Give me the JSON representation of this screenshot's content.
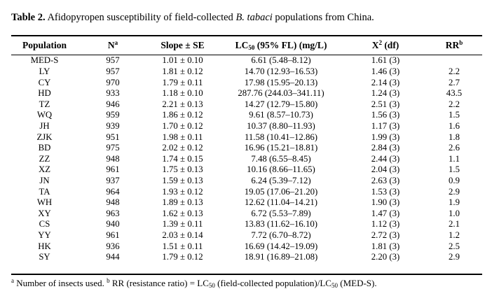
{
  "caption": {
    "label": "Table 2.",
    "text_before": " Afidopyropen susceptibility of field-collected ",
    "species": "B. tabaci",
    "text_after": " populations from China."
  },
  "headers": {
    "population": "Population",
    "n": "N",
    "n_sup": "a",
    "slope": "Slope ± SE",
    "lc_pre": "LC",
    "lc_sub": "50",
    "lc_post": " (95% FL) (mg/L)",
    "chi_pre": "X",
    "chi_sup": "2",
    "chi_post": " (df)",
    "rr": "RR",
    "rr_sup": "b"
  },
  "rows": [
    {
      "pop": "MED-S",
      "n": "957",
      "slope": "1.01 ± 0.10",
      "lc50": "6.61 (5.48–8.12)",
      "chi": "1.61 (3)",
      "rr": ""
    },
    {
      "pop": "LY",
      "n": "957",
      "slope": "1.81 ± 0.12",
      "lc50": "14.70 (12.93–16.53)",
      "chi": "1.46 (3)",
      "rr": "2.2"
    },
    {
      "pop": "CY",
      "n": "970",
      "slope": "1.79 ± 0.11",
      "lc50": "17.98 (15.95–20.13)",
      "chi": "2.14 (3)",
      "rr": "2.7"
    },
    {
      "pop": "HD",
      "n": "933",
      "slope": "1.18 ± 0.10",
      "lc50": "287.76 (244.03–341.11)",
      "chi": "1.24 (3)",
      "rr": "43.5"
    },
    {
      "pop": "TZ",
      "n": "946",
      "slope": "2.21 ± 0.13",
      "lc50": "14.27 (12.79–15.80)",
      "chi": "2.51 (3)",
      "rr": "2.2"
    },
    {
      "pop": "WQ",
      "n": "959",
      "slope": "1.86 ± 0.12",
      "lc50": "9.61 (8.57–10.73)",
      "chi": "1.56 (3)",
      "rr": "1.5"
    },
    {
      "pop": "JH",
      "n": "939",
      "slope": "1.70 ± 0.12",
      "lc50": "10.37 (8.80–11.93)",
      "chi": "1.17 (3)",
      "rr": "1.6"
    },
    {
      "pop": "ZJK",
      "n": "951",
      "slope": "1.98 ± 0.11",
      "lc50": "11.58 (10.41–12.86)",
      "chi": "1.99 (3)",
      "rr": "1.8"
    },
    {
      "pop": "BD",
      "n": "975",
      "slope": "2.02 ± 0.12",
      "lc50": "16.96 (15.21–18.81)",
      "chi": "2.84 (3)",
      "rr": "2.6"
    },
    {
      "pop": "ZZ",
      "n": "948",
      "slope": "1.74 ± 0.15",
      "lc50": "7.48 (6.55–8.45)",
      "chi": "2.44 (3)",
      "rr": "1.1"
    },
    {
      "pop": "XZ",
      "n": "961",
      "slope": "1.75 ± 0.13",
      "lc50": "10.16 (8.66–11.65)",
      "chi": "2.04 (3)",
      "rr": "1.5"
    },
    {
      "pop": "JN",
      "n": "937",
      "slope": "1.59 ± 0.13",
      "lc50": "6.24 (5.39–7.12)",
      "chi": "2.63 (3)",
      "rr": "0.9"
    },
    {
      "pop": "TA",
      "n": "964",
      "slope": "1.93 ± 0.12",
      "lc50": "19.05 (17.06–21.20)",
      "chi": "1.53 (3)",
      "rr": "2.9"
    },
    {
      "pop": "WH",
      "n": "948",
      "slope": "1.89 ± 0.13",
      "lc50": "12.62 (11.04–14.21)",
      "chi": "1.90 (3)",
      "rr": "1.9"
    },
    {
      "pop": "XY",
      "n": "963",
      "slope": "1.62 ± 0.13",
      "lc50": "6.72 (5.53–7.89)",
      "chi": "1.47 (3)",
      "rr": "1.0"
    },
    {
      "pop": "CS",
      "n": "940",
      "slope": "1.39 ± 0.11",
      "lc50": "13.83 (11.62–16.10)",
      "chi": "1.12 (3)",
      "rr": "2.1"
    },
    {
      "pop": "YY",
      "n": "961",
      "slope": "2.03 ± 0.14",
      "lc50": "7.72 (6.70–8.72)",
      "chi": "2.72 (3)",
      "rr": "1.2"
    },
    {
      "pop": "HK",
      "n": "936",
      "slope": "1.51 ± 0.11",
      "lc50": "16.69 (14.42–19.09)",
      "chi": "1.81 (3)",
      "rr": "2.5"
    },
    {
      "pop": "SY",
      "n": "944",
      "slope": "1.79 ± 0.12",
      "lc50": "18.91 (16.89–21.08)",
      "chi": "2.20 (3)",
      "rr": "2.9"
    }
  ],
  "footnote": {
    "a_mark": "a",
    "a_text": " Number of insects used. ",
    "b_mark": "b",
    "b_text_1": " RR (resistance ratio) = LC",
    "b_sub_1": "50",
    "b_text_2": " (field-collected population)/LC",
    "b_sub_2": "50",
    "b_text_3": " (MED-S)."
  }
}
